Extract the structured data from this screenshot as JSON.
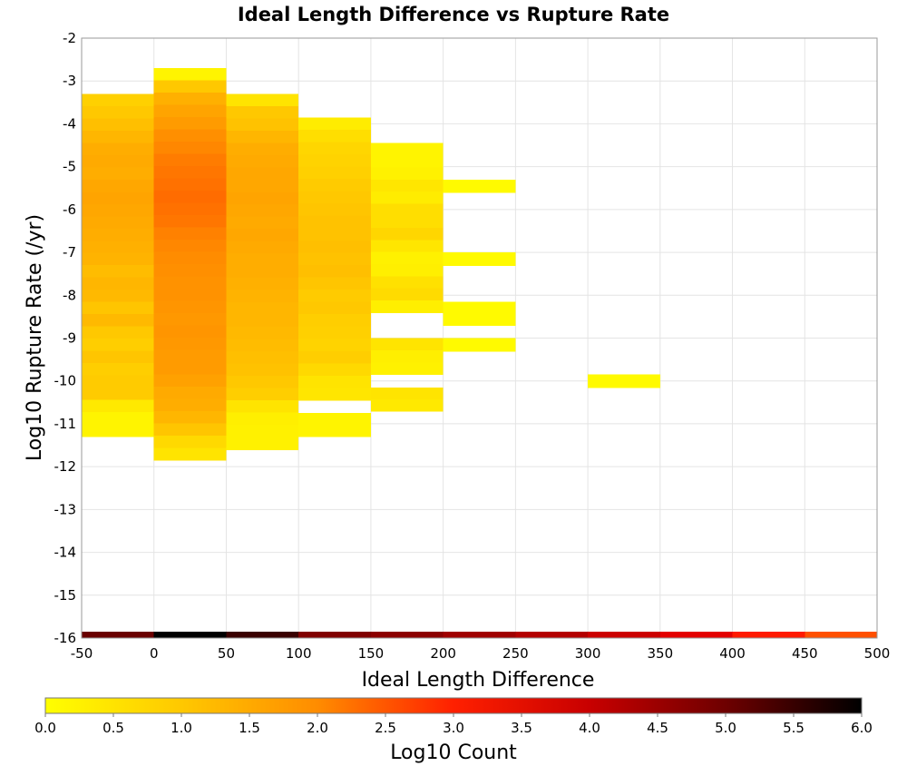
{
  "chart_data": {
    "type": "heatmap",
    "title": "Ideal Length Difference vs Rupture Rate",
    "xlabel": "Ideal Length Difference",
    "ylabel": "Log10 Rupture Rate (/yr)",
    "xlim": [
      -50,
      500
    ],
    "ylim": [
      -16,
      -2
    ],
    "x_ticks": [
      -50,
      0,
      50,
      100,
      150,
      200,
      250,
      300,
      350,
      400,
      450,
      500
    ],
    "y_ticks": [
      -2,
      -3,
      -4,
      -5,
      -6,
      -7,
      -8,
      -9,
      -10,
      -11,
      -12,
      -13,
      -14,
      -15,
      -16
    ],
    "grid": true,
    "x_bin_width": 50,
    "y_bin_height": 0.29,
    "colorbar": {
      "label": "Log10 Count",
      "range": [
        0.0,
        6.0
      ],
      "ticks": [
        "0.0",
        "0.5",
        "1.0",
        "1.5",
        "2.0",
        "2.5",
        "3.0",
        "3.5",
        "4.0",
        "4.5",
        "5.0",
        "5.5",
        "6.0"
      ],
      "colormap": [
        "#ffff00",
        "#ffc800",
        "#ff8c00",
        "#ff2000",
        "#c80000",
        "#6e0000",
        "#000000"
      ]
    },
    "bottom_scale_strip": {
      "description": "colored reference strip along the x axis",
      "colors": [
        "#6a0000",
        "#000000",
        "#3a0000",
        "#800000",
        "#8c0000",
        "#a00000",
        "#b40000",
        "#cc0000",
        "#e40000",
        "#ff1a00",
        "#ff5000"
      ]
    },
    "columns": [
      {
        "x": -25,
        "y_top": -3.3,
        "y_bottom": -11.3,
        "values": [
          0.85,
          1.0,
          1.15,
          1.3,
          1.45,
          1.5,
          1.45,
          1.55,
          1.6,
          1.55,
          1.5,
          1.45,
          1.4,
          1.35,
          1.2,
          1.3,
          1.25,
          1.05,
          1.25,
          1.0,
          0.9,
          1.05,
          0.9,
          0.95,
          0.95,
          0.4,
          0.2,
          0.2
        ]
      },
      {
        "x": 25,
        "y_top": -2.7,
        "y_bottom": -11.85,
        "values": [
          0.2,
          1.0,
          1.4,
          1.6,
          1.75,
          1.95,
          2.05,
          2.15,
          2.2,
          2.25,
          2.3,
          2.25,
          2.2,
          2.1,
          2.05,
          2.0,
          1.95,
          1.9,
          1.9,
          1.85,
          1.8,
          1.85,
          1.8,
          1.75,
          1.75,
          1.65,
          1.5,
          1.45,
          1.3,
          1.05,
          0.7,
          0.5
        ]
      },
      {
        "x": 75,
        "y_top": -3.3,
        "y_bottom": -11.6,
        "values": [
          0.5,
          1.0,
          1.1,
          1.3,
          1.45,
          1.5,
          1.55,
          1.55,
          1.6,
          1.55,
          1.5,
          1.55,
          1.5,
          1.45,
          1.45,
          1.4,
          1.35,
          1.3,
          1.3,
          1.25,
          1.2,
          1.15,
          1.1,
          1.0,
          0.9,
          0.5,
          0.3,
          0.25,
          0.25
        ]
      },
      {
        "x": 125,
        "y_top": -3.85,
        "y_bottom": -10.45,
        "values": [
          0.35,
          0.6,
          0.75,
          0.8,
          0.85,
          0.95,
          1.0,
          1.05,
          1.1,
          1.1,
          1.15,
          1.1,
          1.15,
          1.05,
          0.95,
          1.0,
          0.9,
          0.85,
          0.8,
          0.9,
          0.7,
          0.5,
          0.45
        ]
      },
      {
        "x": 125,
        "y_top": -10.75,
        "y_bottom": -11.3,
        "values": [
          0.2,
          0.2
        ]
      },
      {
        "x": 175,
        "y_top": -4.45,
        "y_bottom": -5.3,
        "values": [
          0.2,
          0.2,
          0.25
        ]
      },
      {
        "x": 175,
        "y_top": -5.3,
        "y_bottom": -8.4,
        "values": [
          0.45,
          0.35,
          0.6,
          0.6,
          0.75,
          0.45,
          0.25,
          0.3,
          0.55,
          0.65,
          0.3
        ]
      },
      {
        "x": 175,
        "y_top": -9.0,
        "y_bottom": -9.85,
        "values": [
          0.5,
          0.3,
          0.25
        ]
      },
      {
        "x": 175,
        "y_top": -10.15,
        "y_bottom": -10.7,
        "values": [
          0.5,
          0.4
        ]
      },
      {
        "x": 225,
        "y_top": -5.3,
        "y_bottom": -5.6,
        "values": [
          0.1
        ]
      },
      {
        "x": 225,
        "y_top": -7.0,
        "y_bottom": -7.3,
        "values": [
          0.1
        ]
      },
      {
        "x": 225,
        "y_top": -8.15,
        "y_bottom": -8.7,
        "values": [
          0.1,
          0.1
        ]
      },
      {
        "x": 225,
        "y_top": -9.0,
        "y_bottom": -9.3,
        "values": [
          0.1
        ]
      },
      {
        "x": 325,
        "y_top": -9.85,
        "y_bottom": -10.15,
        "values": [
          0.1
        ]
      }
    ]
  }
}
